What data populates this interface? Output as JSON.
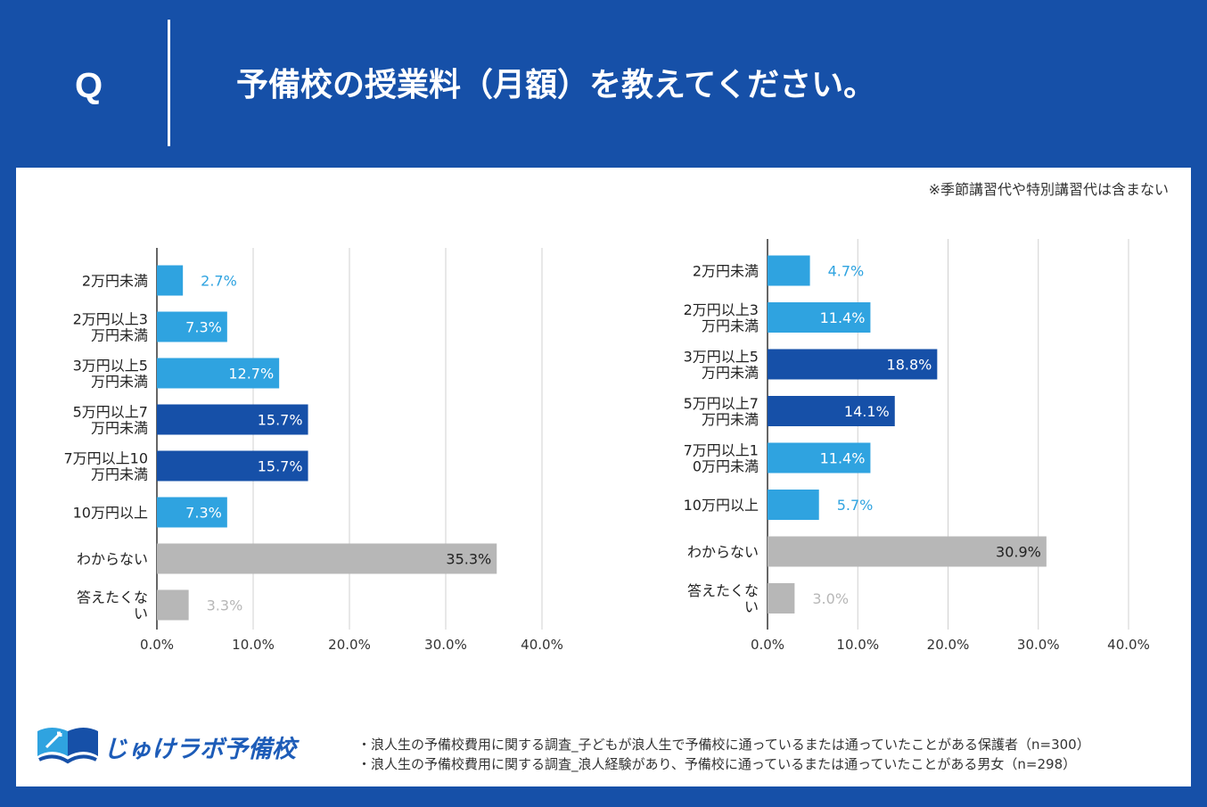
{
  "header": {
    "q_label": "Q",
    "question": "予備校の授業料（月額）を教えてください。"
  },
  "note": "※季節講習代や特別講習代は含まない",
  "colors": {
    "header_bg": "#1650a8",
    "light_blue": "#2fa3e0",
    "dark_blue": "#1650a8",
    "gray": "#b7b7b7"
  },
  "chart_data": [
    {
      "type": "bar",
      "orientation": "horizontal",
      "categories": [
        "2万円未満",
        "2万円以上3万円未満",
        "3万円以上5万円未満",
        "5万円以上7万円未満",
        "7万円以上10万円未満",
        "10万円以上",
        "わからない",
        "答えたくない"
      ],
      "category_lines": [
        [
          "2万円未満"
        ],
        [
          "2万円以上3",
          "万円未満"
        ],
        [
          "3万円以上5",
          "万円未満"
        ],
        [
          "5万円以上7",
          "万円未満"
        ],
        [
          "7万円以上10",
          "万円未満"
        ],
        [
          "10万円以上"
        ],
        [
          "わからない"
        ],
        [
          "答えたくな",
          "い"
        ]
      ],
      "values": [
        2.7,
        7.3,
        12.7,
        15.7,
        15.7,
        7.3,
        35.3,
        3.3
      ],
      "value_labels": [
        "2.7%",
        "7.3%",
        "12.7%",
        "15.7%",
        "15.7%",
        "7.3%",
        "35.3%",
        "3.3%"
      ],
      "bar_colors": [
        "#2fa3e0",
        "#2fa3e0",
        "#2fa3e0",
        "#1650a8",
        "#1650a8",
        "#2fa3e0",
        "#b7b7b7",
        "#b7b7b7"
      ],
      "xlim": [
        0,
        40
      ],
      "xticks": [
        "0.0%",
        "10.0%",
        "20.0%",
        "30.0%",
        "40.0%"
      ],
      "grid": true
    },
    {
      "type": "bar",
      "orientation": "horizontal",
      "categories": [
        "2万円未満",
        "2万円以上3万円未満",
        "3万円以上5万円未満",
        "5万円以上7万円未満",
        "7万円以上10万円未満",
        "10万円以上",
        "わからない",
        "答えたくない"
      ],
      "category_lines": [
        [
          "2万円未満"
        ],
        [
          "2万円以上3",
          "万円未満"
        ],
        [
          "3万円以上5",
          "万円未満"
        ],
        [
          "5万円以上7",
          "万円未満"
        ],
        [
          "7万円以上1",
          "0万円未満"
        ],
        [
          "10万円以上"
        ],
        [
          "わからない"
        ],
        [
          "答えたくな",
          "い"
        ]
      ],
      "values": [
        4.7,
        11.4,
        18.8,
        14.1,
        11.4,
        5.7,
        30.9,
        3.0
      ],
      "value_labels": [
        "4.7%",
        "11.4%",
        "18.8%",
        "14.1%",
        "11.4%",
        "5.7%",
        "30.9%",
        "3.0%"
      ],
      "bar_colors": [
        "#2fa3e0",
        "#2fa3e0",
        "#1650a8",
        "#1650a8",
        "#2fa3e0",
        "#2fa3e0",
        "#b7b7b7",
        "#b7b7b7"
      ],
      "xlim": [
        0,
        40
      ],
      "xticks": [
        "0.0%",
        "10.0%",
        "20.0%",
        "30.0%",
        "40.0%"
      ],
      "grid": true
    }
  ],
  "logo": {
    "text": "じゅけラボ予備校"
  },
  "sources": [
    "・浪人生の予備校費用に関する調査_子どもが浪人生で予備校に通っているまたは通っていたことがある保護者（n=300）",
    "・浪人生の予備校費用に関する調査_浪人経験があり、予備校に通っているまたは通っていたことがある男女（n=298）"
  ]
}
